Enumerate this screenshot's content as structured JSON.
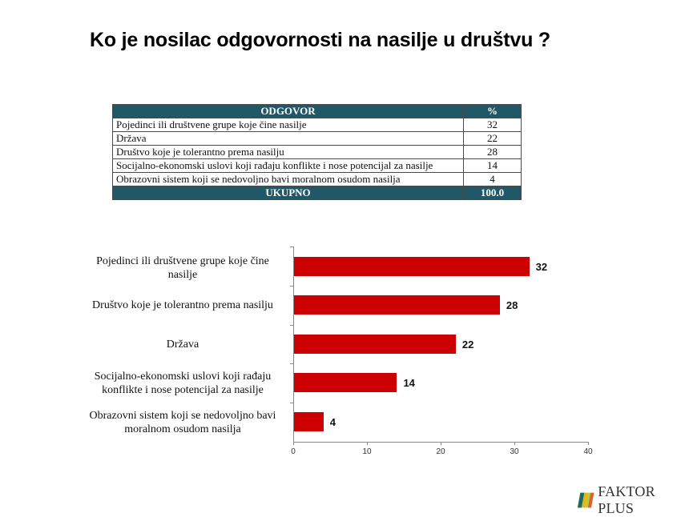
{
  "title": "Ko je nosilac odgovornosti na nasilje u društvu ?",
  "table": {
    "headers": [
      "ODGOVOR",
      "%"
    ],
    "rows": [
      {
        "answer": "Pojedinci ili društvene grupe koje čine nasilje",
        "pct": "32"
      },
      {
        "answer": "Država",
        "pct": "22"
      },
      {
        "answer": "Društvo koje je tolerantno prema nasilju",
        "pct": "28"
      },
      {
        "answer": "Socijalno-ekonomski uslovi koji rađaju konflikte i nose potencijal za nasilje",
        "pct": "14"
      },
      {
        "answer": "Obrazovni sistem koji se nedovoljno bavi moralnom osudom nasilja",
        "pct": "4"
      }
    ],
    "total": {
      "label": "UKUPNO",
      "pct": "100.0"
    },
    "header_color": "#215867"
  },
  "chart_data": {
    "type": "bar",
    "orientation": "horizontal",
    "title": "",
    "categories": [
      "Pojedinci ili društvene grupe koje čine nasilje",
      "Društvo koje je tolerantno prema nasilju",
      "Država",
      "Socijalno-ekonomski uslovi koji rađaju konflikte i nose potencijal za nasilje",
      "Obrazovni sistem koji se nedovoljno bavi moralnom osudom nasilja"
    ],
    "category_lines": [
      [
        "Pojedinci ili društvene grupe koje čine",
        "nasilje"
      ],
      [
        "Društvo koje je tolerantno prema nasilju"
      ],
      [
        "Država"
      ],
      [
        "Socijalno-ekonomski uslovi koji rađaju",
        "konflikte i nose potencijal za nasilje"
      ],
      [
        "Obrazovni sistem koji se nedovoljno bavi",
        "moralnom osudom nasilja"
      ]
    ],
    "values": [
      32,
      28,
      22,
      14,
      4
    ],
    "data_labels": [
      "32",
      "28",
      "22",
      "14",
      "4"
    ],
    "xlabel": "",
    "ylabel": "",
    "xlim": [
      0,
      40
    ],
    "x_ticks": [
      "0",
      "10",
      "20",
      "30",
      "40"
    ],
    "grid": false,
    "legend": null,
    "bar_color": "#cc0000"
  },
  "logo": {
    "text": "FAKTOR PLUS"
  }
}
